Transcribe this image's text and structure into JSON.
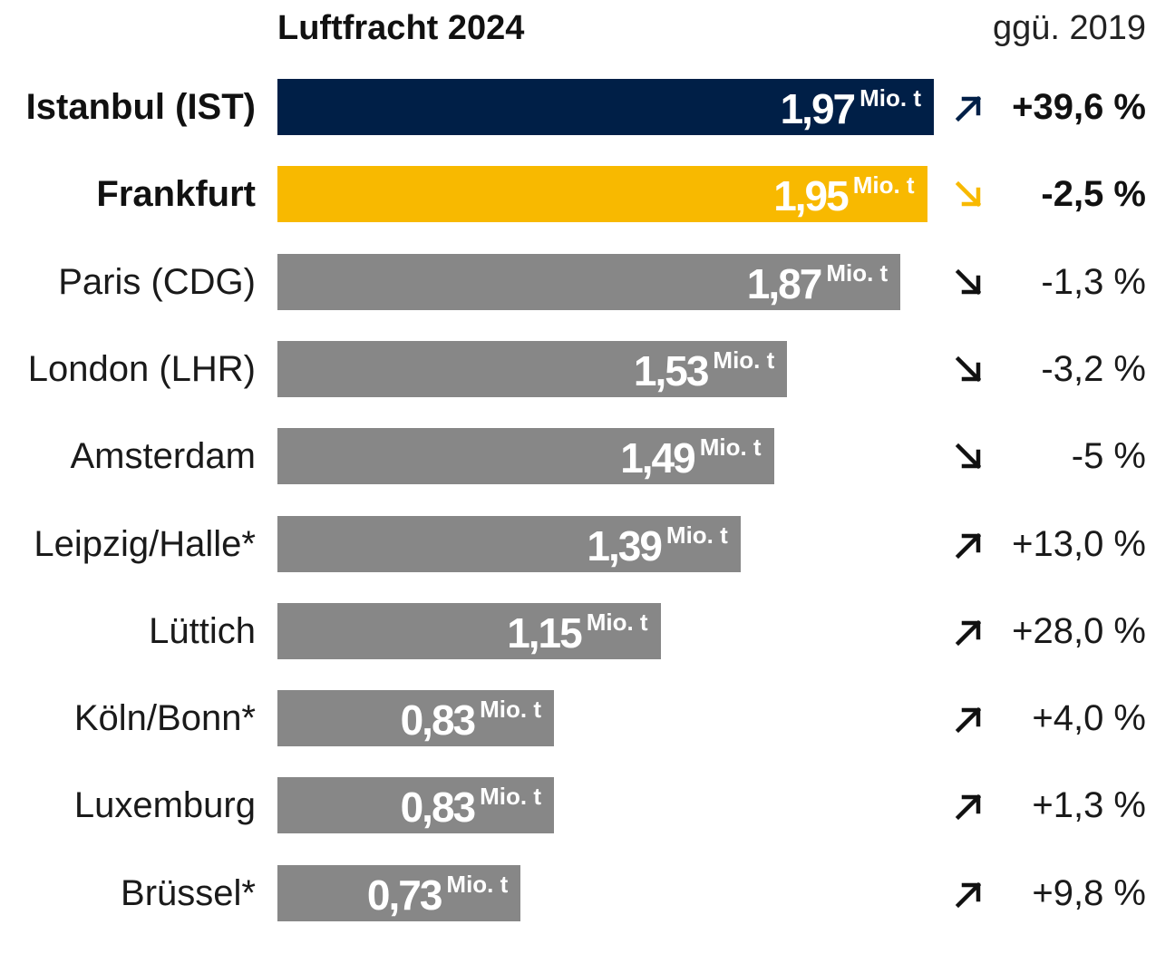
{
  "chart_data": {
    "type": "bar",
    "title": "Luftfracht 2024",
    "comparison_header": "ggü. 2019",
    "unit": "Mio. t",
    "orientation": "horizontal",
    "xlim": [
      0,
      2.0
    ],
    "categories": [
      "Istanbul (IST)",
      "Frankfurt",
      "Paris (CDG)",
      "London (LHR)",
      "Amsterdam",
      "Leipzig/Halle*",
      "Lüttich",
      "Köln/Bonn*",
      "Luxemburg",
      "Brüssel*"
    ],
    "values": [
      1.97,
      1.95,
      1.87,
      1.53,
      1.49,
      1.39,
      1.15,
      0.83,
      0.83,
      0.73
    ],
    "value_labels": [
      "1,97",
      "1,95",
      "1,87",
      "1,53",
      "1,49",
      "1,39",
      "1,15",
      "0,83",
      "0,83",
      "0,73"
    ],
    "changes": [
      "+39,6 %",
      "-2,5 %",
      "-1,3 %",
      "-3,2 %",
      "-5 %",
      "+13,0 %",
      "+28,0 %",
      "+4,0 %",
      "+1,3 %",
      "+9,8 %"
    ],
    "trends": [
      "up",
      "down",
      "down",
      "down",
      "down",
      "up",
      "up",
      "up",
      "up",
      "up"
    ],
    "highlighted": [
      "Istanbul (IST)",
      "Frankfurt"
    ],
    "colors": {
      "Istanbul (IST)": "#001f47",
      "Frankfurt": "#f8b900",
      "default": "#878787",
      "arrow_default": "#111111"
    },
    "grid": false,
    "legend": "none"
  }
}
